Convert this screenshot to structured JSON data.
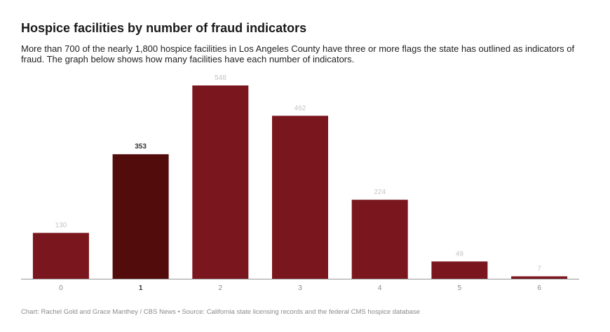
{
  "chart_data": {
    "type": "bar",
    "title": "Hospice facilities by number of fraud indicators",
    "subtitle": "More than 700 of the nearly 1,800 hospice facilities in Los Angeles County have three or more flags the state has outlined as indicators of fraud. The graph below shows how many facilities have each number of indicators.",
    "categories": [
      "0",
      "1",
      "2",
      "3",
      "4",
      "5",
      "6"
    ],
    "values": [
      130,
      353,
      548,
      462,
      224,
      49,
      7
    ],
    "highlighted_category": "1",
    "xlabel": "",
    "ylabel": "",
    "ylim": [
      0,
      548
    ],
    "grid": false,
    "legend": "none",
    "colors": {
      "bar": "#7a171e",
      "bar_highlight": "#530c0c",
      "label": "#c4c4c4",
      "label_highlight": "#333333",
      "axis": "#999999"
    }
  },
  "source": "Chart: Rachel Gold and Grace Manthey / CBS News • Source: California state licensing records and the federal CMS hospice database"
}
